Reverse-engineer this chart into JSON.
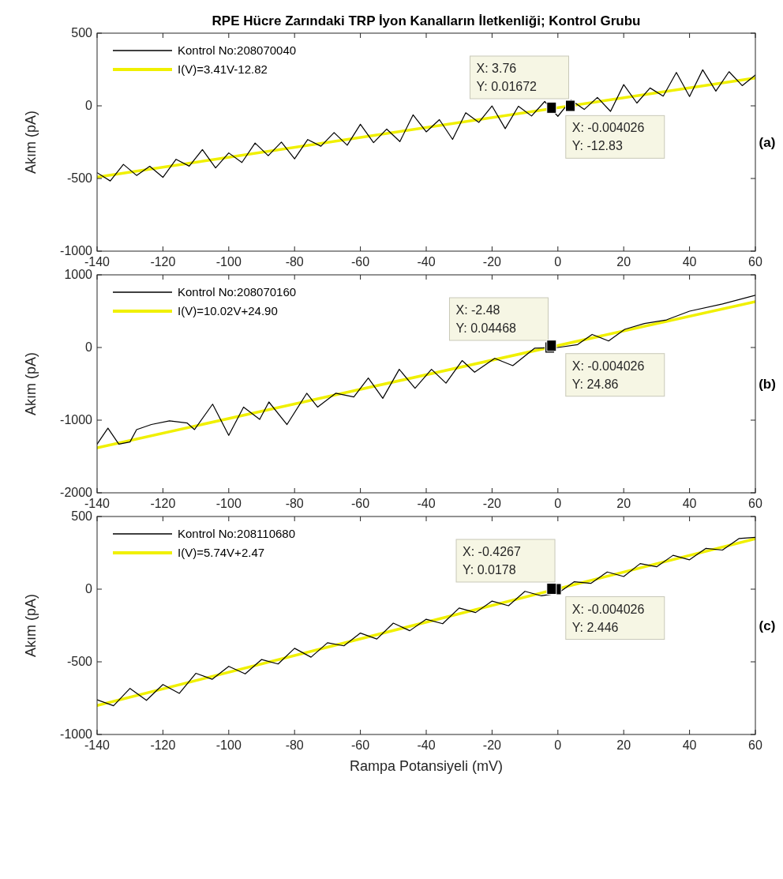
{
  "chart_data": [
    {
      "type": "line",
      "title": "RPE Hücre Zarındaki TRP İyon Kanalların İletkenliği; Kontrol Grubu",
      "ylabel": "Akım (pA)",
      "xlim": [
        -140,
        60
      ],
      "ylim": [
        -1000,
        500
      ],
      "xticks": [
        -140,
        -120,
        -100,
        -80,
        -60,
        -40,
        -20,
        0,
        20,
        40,
        60
      ],
      "yticks": [
        -1000,
        -500,
        0,
        500
      ],
      "legend": "top left",
      "series": [
        {
          "name": "Kontrol No:208070040",
          "color": "#000000",
          "x": [
            -140,
            -136,
            -132,
            -128,
            -124,
            -120,
            -116,
            -112,
            -108,
            -104,
            -100,
            -96,
            -92,
            -88,
            -84,
            -80,
            -76,
            -72,
            -68,
            -64,
            -60,
            -56,
            -52,
            -48,
            -44,
            -40,
            -36,
            -32,
            -28,
            -24,
            -20,
            -16,
            -12,
            -8,
            -4,
            0,
            4,
            8,
            12,
            16,
            20,
            24,
            28,
            32,
            36,
            40,
            44,
            48,
            52,
            56,
            60
          ],
          "values": [
            -460,
            -517,
            -403,
            -479,
            -416,
            -492,
            -368,
            -415,
            -301,
            -427,
            -324,
            -390,
            -256,
            -343,
            -249,
            -365,
            -232,
            -278,
            -184,
            -271,
            -127,
            -253,
            -160,
            -246,
            -62,
            -179,
            -95,
            -231,
            -48,
            -114,
            -1,
            -157,
            -3,
            -70,
            30,
            -72,
            40,
            -25,
            58,
            -38,
            146,
            19,
            123,
            67,
            230,
            64,
            248,
            101,
            235,
            139,
            212
          ]
        },
        {
          "name": "I(V)=3.41V-12.82",
          "color": "#f0f000",
          "x": [
            -140,
            60
          ],
          "values": [
            -490,
            192
          ]
        }
      ],
      "annotations": [
        {
          "text": "X: 3.76\nY: 0.01672",
          "x": 3.76,
          "y": 0.01672
        },
        {
          "text": "X: -0.004026\nY: -12.83",
          "x": -0.004026,
          "y": -12.83
        },
        "(a)"
      ]
    },
    {
      "type": "line",
      "ylabel": "Akım (pA)",
      "xlim": [
        -140,
        60
      ],
      "ylim": [
        -2000,
        1000
      ],
      "xticks": [
        -140,
        -120,
        -100,
        -80,
        -60,
        -40,
        -20,
        0,
        20,
        40,
        60
      ],
      "yticks": [
        -2000,
        -1000,
        0,
        1000
      ],
      "legend": "top left",
      "series": [
        {
          "name": "Kontrol No:208070160",
          "color": "#000000",
          "x": [
            -140,
            -136.7,
            -133.4,
            -130,
            -128,
            -123.5,
            -118,
            -112.6,
            -110.4,
            -104.9,
            -100,
            -95.5,
            -90.6,
            -87.8,
            -82.3,
            -76.3,
            -73,
            -67.5,
            -62,
            -57.6,
            -53.2,
            -48.2,
            -43.4,
            -38.4,
            -34,
            -29.1,
            -25.3,
            -19.2,
            -13.7,
            -7.1,
            0,
            6,
            10.4,
            15.4,
            20.3,
            26.3,
            33,
            40,
            50,
            60
          ],
          "values": [
            -1330,
            -1110,
            -1330,
            -1300,
            -1130,
            -1060,
            -1010,
            -1040,
            -1130,
            -780,
            -1210,
            -820,
            -990,
            -750,
            -1060,
            -630,
            -820,
            -630,
            -680,
            -420,
            -700,
            -300,
            -560,
            -300,
            -490,
            -180,
            -340,
            -150,
            -250,
            -10,
            0,
            40,
            180,
            90,
            250,
            330,
            380,
            500,
            600,
            720
          ]
        },
        {
          "name": "I(V)=10.02V+24.90",
          "color": "#f0f000",
          "x": [
            -140,
            60
          ],
          "values": [
            -1380,
            630
          ]
        }
      ],
      "annotations": [
        {
          "text": "X: -2.48\nY: 0.04468",
          "x": -2.48,
          "y": 0.04468
        },
        {
          "text": "X: -0.004026\nY: 24.86",
          "x": -0.004026,
          "y": 24.86
        },
        "(b)"
      ]
    },
    {
      "type": "line",
      "xlabel": "Rampa Potansiyeli (mV)",
      "ylabel": "Akım (pA)",
      "xlim": [
        -140,
        60
      ],
      "ylim": [
        -1000,
        500
      ],
      "xticks": [
        -140,
        -120,
        -100,
        -80,
        -60,
        -40,
        -20,
        0,
        20,
        40,
        60
      ],
      "yticks": [
        -1000,
        -500,
        0,
        500
      ],
      "legend": "top left",
      "series": [
        {
          "name": "Kontrol No:208110680",
          "color": "#000000",
          "x": [
            -140,
            -135,
            -130,
            -125,
            -120,
            -115,
            -110,
            -105,
            -100,
            -95,
            -90,
            -85,
            -80,
            -75,
            -70,
            -65,
            -60,
            -55,
            -50,
            -45,
            -40,
            -35,
            -30,
            -25,
            -20,
            -15,
            -10,
            -5,
            0,
            5,
            10,
            15,
            20,
            25,
            30,
            35,
            40,
            45,
            50,
            55,
            60
          ],
          "values": [
            -761,
            -802,
            -683,
            -765,
            -656,
            -717,
            -579,
            -620,
            -531,
            -583,
            -484,
            -515,
            -407,
            -468,
            -369,
            -390,
            -302,
            -343,
            -234,
            -286,
            -207,
            -238,
            -130,
            -161,
            -82,
            -114,
            -15,
            -46,
            -28,
            51,
            40,
            118,
            87,
            176,
            154,
            233,
            202,
            281,
            269,
            348,
            357
          ]
        },
        {
          "name": "I(V)=5.74V+2.47",
          "color": "#f0f000",
          "x": [
            -140,
            60
          ],
          "values": [
            -801,
            347
          ]
        }
      ],
      "annotations": [
        {
          "text": "X: -0.4267\nY: 0.0178",
          "x": -0.4267,
          "y": 0.0178
        },
        {
          "text": "X: -0.004026\nY: 2.446",
          "x": -0.004026,
          "y": 2.446
        },
        "(c)"
      ]
    }
  ]
}
